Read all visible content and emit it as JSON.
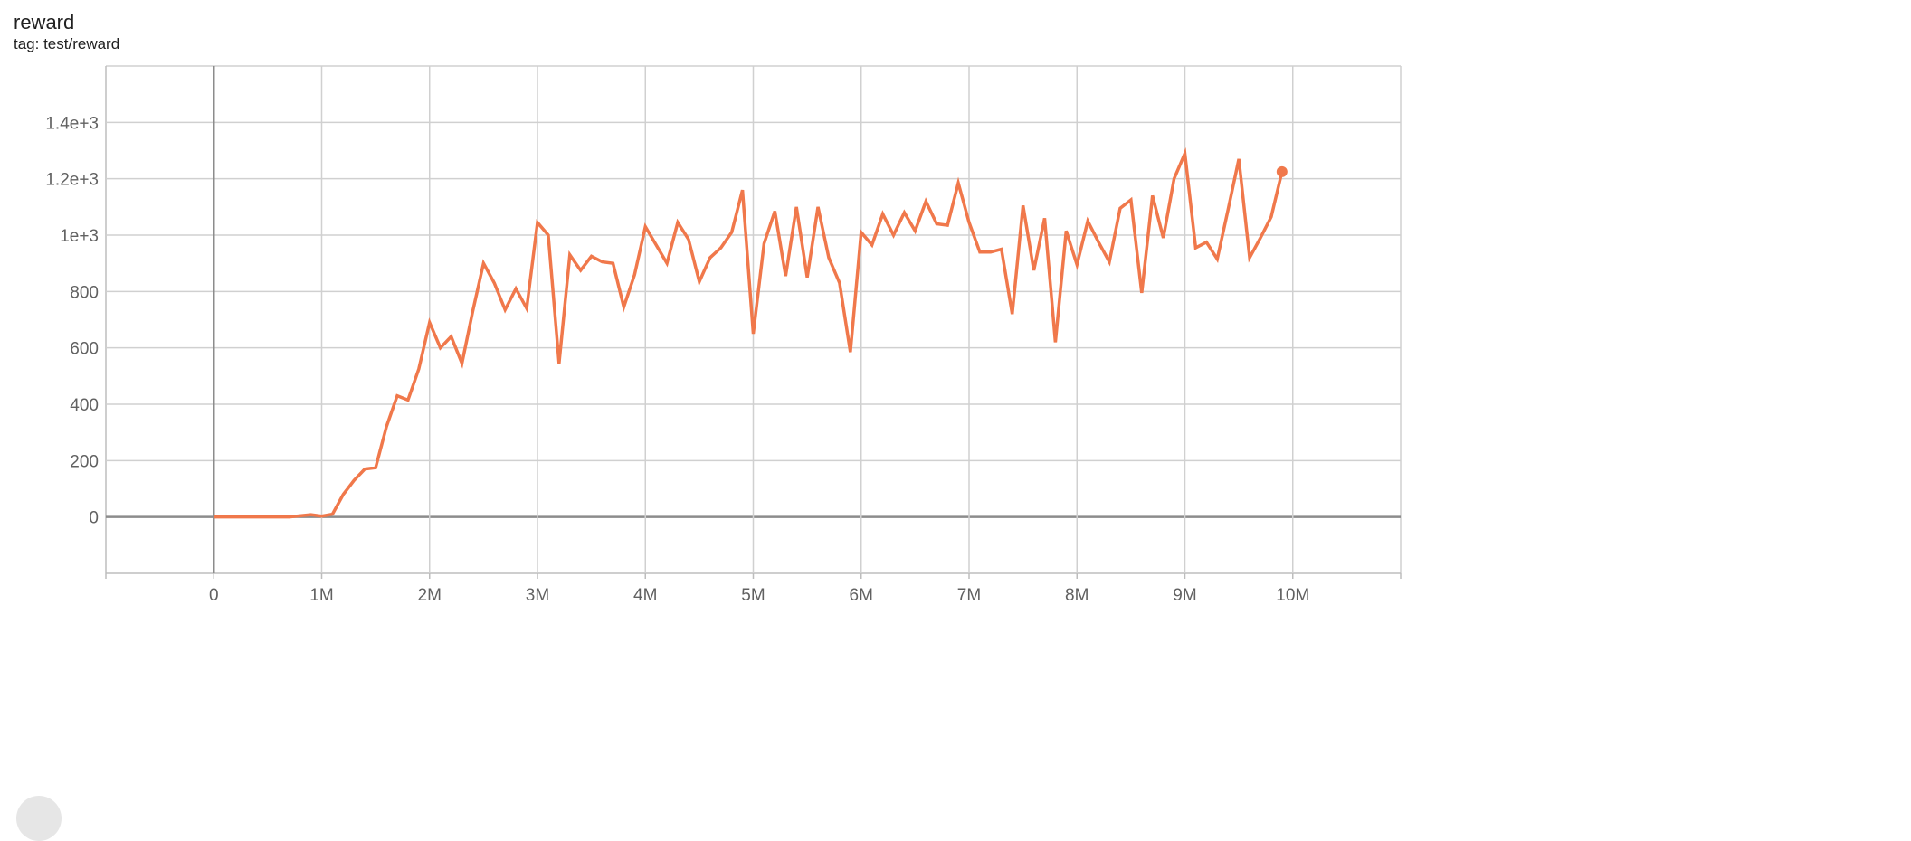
{
  "header": {
    "title": "reward",
    "tag": "tag: test/reward"
  },
  "chart_data": {
    "type": "line",
    "title": "reward",
    "xlabel": "",
    "ylabel": "",
    "xlim": [
      -1000000,
      11000000
    ],
    "ylim": [
      -200,
      1600
    ],
    "grid": true,
    "x_ticks": [
      {
        "v": 0,
        "label": "0"
      },
      {
        "v": 1000000,
        "label": "1M"
      },
      {
        "v": 2000000,
        "label": "2M"
      },
      {
        "v": 3000000,
        "label": "3M"
      },
      {
        "v": 4000000,
        "label": "4M"
      },
      {
        "v": 5000000,
        "label": "5M"
      },
      {
        "v": 6000000,
        "label": "6M"
      },
      {
        "v": 7000000,
        "label": "7M"
      },
      {
        "v": 8000000,
        "label": "8M"
      },
      {
        "v": 9000000,
        "label": "9M"
      },
      {
        "v": 10000000,
        "label": "10M"
      }
    ],
    "y_ticks": [
      {
        "v": 0,
        "label": "0"
      },
      {
        "v": 200,
        "label": "200"
      },
      {
        "v": 400,
        "label": "400"
      },
      {
        "v": 600,
        "label": "600"
      },
      {
        "v": 800,
        "label": "800"
      },
      {
        "v": 1000,
        "label": "1e+3"
      },
      {
        "v": 1200,
        "label": "1.2e+3"
      },
      {
        "v": 1400,
        "label": "1.4e+3"
      }
    ],
    "series": [
      {
        "color": "#f0784b",
        "x_start": 0,
        "x_step": 100000,
        "values": [
          0,
          0,
          0,
          0,
          0,
          0,
          0,
          0,
          4,
          8,
          3,
          10,
          80,
          130,
          170,
          175,
          320,
          430,
          415,
          525,
          690,
          600,
          640,
          545,
          730,
          900,
          830,
          735,
          810,
          740,
          1045,
          1000,
          545,
          930,
          875,
          925,
          905,
          900,
          745,
          860,
          1030,
          965,
          900,
          1045,
          985,
          835,
          920,
          955,
          1010,
          1160,
          650,
          970,
          1085,
          855,
          1100,
          850,
          1100,
          920,
          830,
          585,
          1010,
          965,
          1075,
          1000,
          1080,
          1015,
          1120,
          1040,
          1035,
          1185,
          1045,
          940,
          940,
          950,
          720,
          1105,
          875,
          1060,
          620,
          1015,
          895,
          1050,
          975,
          905,
          1095,
          1125,
          795,
          1140,
          990,
          1200,
          1290,
          955,
          975,
          915,
          1090,
          1270,
          920,
          990,
          1065,
          1225
        ]
      }
    ]
  }
}
